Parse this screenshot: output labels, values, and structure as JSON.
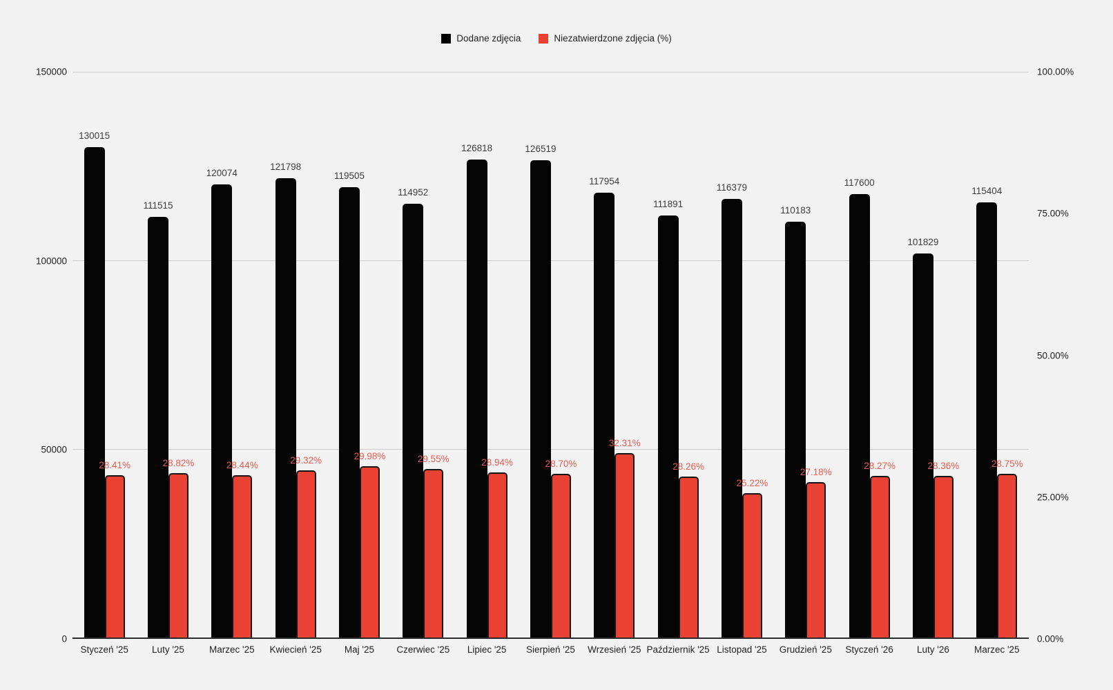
{
  "page": {
    "background": "#f2f2f2"
  },
  "chart_data": {
    "type": "bar",
    "title": "",
    "xlabel": "",
    "ylabel_left": "",
    "ylabel_right": "",
    "legend_position": "top-center",
    "grid": "horizontal",
    "categories": [
      "Styczeń '25",
      "Luty '25",
      "Marzec '25",
      "Kwiecień '25",
      "Maj '25",
      "Czerwiec '25",
      "Lipiec '25",
      "Sierpień '25",
      "Wrzesień '25",
      "Październik '25",
      "Listopad '25",
      "Grudzień '25",
      "Styczeń '26",
      "Luty '26",
      "Marzec '25"
    ],
    "series": [
      {
        "name": "Dodane zdjęcia",
        "axis": "left",
        "color": "#000000",
        "label_color": "#3c3c3c",
        "values": [
          130015,
          111515,
          120074,
          121798,
          119505,
          114952,
          126818,
          126519,
          117954,
          111891,
          116379,
          110183,
          117600,
          101829,
          115404
        ],
        "labels": [
          "130015",
          "111515",
          "120074",
          "121798",
          "119505",
          "114952",
          "126818",
          "126519",
          "117954",
          "111891",
          "116379",
          "110183",
          "117600",
          "101829",
          "115404"
        ]
      },
      {
        "name": "Niezatwierdzone zdjęcia (%)",
        "axis": "right",
        "color": "#e94235",
        "label_color": "#e85b50",
        "values": [
          28.41,
          28.82,
          28.44,
          29.32,
          29.98,
          29.55,
          28.94,
          28.7,
          32.31,
          28.26,
          25.22,
          27.18,
          28.27,
          28.36,
          28.75
        ],
        "labels": [
          "28.41%",
          "28.82%",
          "28.44%",
          "29.32%",
          "29.98%",
          "29.55%",
          "28.94%",
          "28.70%",
          "32.31%",
          "28.26%",
          "25.22%",
          "27.18%",
          "28.27%",
          "28.36%",
          "28.75%"
        ]
      }
    ],
    "left_axis": {
      "min": 0,
      "max": 150000,
      "ticks": [
        "150000",
        "100000",
        "50000",
        "0"
      ]
    },
    "right_axis": {
      "min": 0,
      "max": 100,
      "ticks": [
        "100.00%",
        "75.00%",
        "50.00%",
        "25.00%",
        "0.00%"
      ]
    }
  }
}
